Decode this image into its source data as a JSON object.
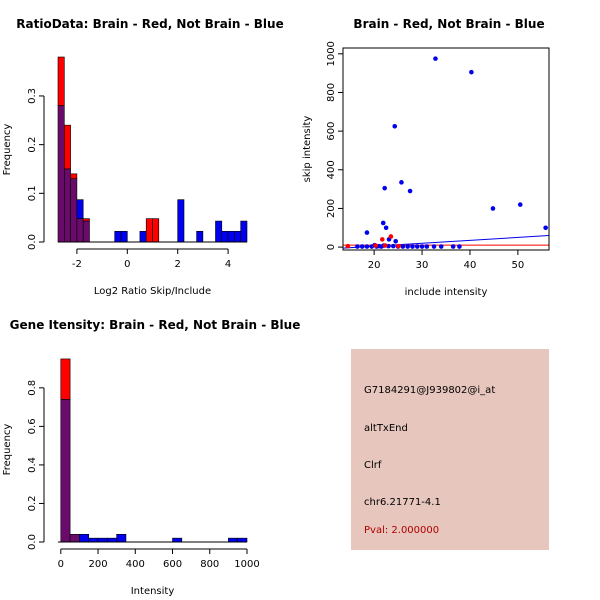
{
  "colors": {
    "red": "#ff0000",
    "blue": "#0000ee",
    "overlap": "#6a0a6a",
    "panel_bg": "#e6c6bd",
    "pval": "#b00000"
  },
  "chart_data": [
    {
      "type": "bar",
      "subtype": "overlaid-histogram",
      "title": "RatioData: Brain - Red, Not Brain - Blue",
      "xlabel": "Log2 Ratio Skip/Include",
      "ylabel": "Frequency",
      "xlim": [
        -2.75,
        4.75
      ],
      "ylim": [
        0,
        0.38
      ],
      "xticks": [
        "-2",
        "0",
        "2",
        "4"
      ],
      "xtick_values": [
        -2,
        0,
        2,
        4
      ],
      "yticks": [
        "0.0",
        "0.1",
        "0.2",
        "0.3"
      ],
      "ytick_values": [
        0,
        0.1,
        0.2,
        0.3
      ],
      "bin_width": 0.25,
      "series": [
        {
          "name": "Brain",
          "color": "red",
          "x0": -2.75,
          "values": [
            0.38,
            0.24,
            0.14,
            0.048,
            0.048,
            0,
            0,
            0,
            0,
            0,
            0,
            0,
            0,
            0,
            0.048,
            0.048
          ]
        },
        {
          "name": "Not Brain",
          "color": "blue",
          "x0": -2.75,
          "values": [
            0.28,
            0.15,
            0.13,
            0.087,
            0.043,
            0,
            0,
            0,
            0,
            0.022,
            0.022,
            0,
            0,
            0.022,
            0,
            0,
            0,
            0,
            0,
            0.087,
            0,
            0,
            0.022,
            0,
            0,
            0.043,
            0.022,
            0.022,
            0.022,
            0.043
          ]
        }
      ]
    },
    {
      "type": "scatter",
      "title": "Brain - Red, Not Brain - Blue",
      "xlabel": "include intensity",
      "ylabel": "skip intensity",
      "xlim": [
        13.5,
        56.5
      ],
      "ylim": [
        -15,
        1030
      ],
      "xticks": [
        "20",
        "30",
        "40",
        "50"
      ],
      "xtick_values": [
        20,
        30,
        40,
        50
      ],
      "yticks": [
        "0",
        "200",
        "400",
        "600",
        "800",
        "1000"
      ],
      "ytick_values": [
        0,
        200,
        400,
        600,
        800,
        1000
      ],
      "series": [
        {
          "name": "Not Brain",
          "color": "blue",
          "points": [
            [
              32.8,
              975
            ],
            [
              40.3,
              905
            ],
            [
              24.3,
              625
            ],
            [
              25.7,
              335
            ],
            [
              22.2,
              305
            ],
            [
              27.5,
              290
            ],
            [
              50.5,
              220
            ],
            [
              44.8,
              200
            ],
            [
              55.8,
              100
            ],
            [
              21.9,
              125
            ],
            [
              22.5,
              100
            ],
            [
              18.5,
              75
            ],
            [
              23.1,
              40
            ],
            [
              24.5,
              30
            ],
            [
              20.1,
              10
            ],
            [
              21.0,
              5
            ],
            [
              22.0,
              8
            ],
            [
              23.0,
              5
            ],
            [
              24.0,
              5
            ],
            [
              25.0,
              3
            ],
            [
              26.0,
              3
            ],
            [
              27.0,
              3
            ],
            [
              28.0,
              3
            ],
            [
              29.0,
              3
            ],
            [
              30.0,
              3
            ],
            [
              31.0,
              3
            ],
            [
              32.5,
              3
            ],
            [
              34.0,
              3
            ],
            [
              36.5,
              3
            ],
            [
              37.8,
              3
            ],
            [
              16.5,
              3
            ],
            [
              17.5,
              3
            ],
            [
              18.5,
              3
            ],
            [
              19.5,
              3
            ],
            [
              20.5,
              3
            ],
            [
              21.5,
              3
            ]
          ]
        },
        {
          "name": "Brain",
          "color": "red",
          "points": [
            [
              14.5,
              5
            ],
            [
              21.7,
              40
            ],
            [
              23.5,
              55
            ],
            [
              20.3,
              8
            ],
            [
              22.3,
              8
            ],
            [
              25.1,
              5
            ]
          ]
        }
      ],
      "fit_lines": [
        {
          "color": "blue",
          "x1": 13.5,
          "y1": -5,
          "x2": 56.5,
          "y2": 60
        },
        {
          "color": "red",
          "x1": 13.5,
          "y1": 10,
          "x2": 56.5,
          "y2": 10
        }
      ]
    },
    {
      "type": "bar",
      "subtype": "overlaid-histogram",
      "title": "Gene Itensity: Brain - Red, Not Brain - Blue",
      "xlabel": "Intensity",
      "ylabel": "Frequency",
      "xlim": [
        -15,
        1000
      ],
      "ylim": [
        0,
        0.96
      ],
      "xticks": [
        "0",
        "200",
        "400",
        "600",
        "800",
        "1000"
      ],
      "xtick_values": [
        0,
        200,
        400,
        600,
        800,
        1000
      ],
      "yticks": [
        "0.0",
        "0.2",
        "0.4",
        "0.6",
        "0.8"
      ],
      "ytick_values": [
        0,
        0.2,
        0.4,
        0.6,
        0.8
      ],
      "bin_width": 50,
      "series": [
        {
          "name": "Brain",
          "color": "red",
          "x0": 0,
          "values": [
            0.95,
            0.04
          ]
        },
        {
          "name": "Not Brain",
          "color": "blue",
          "x0": 0,
          "values": [
            0.74,
            0.04,
            0.04,
            0.02,
            0.02,
            0.02,
            0.04,
            0,
            0,
            0,
            0,
            0,
            0.02,
            0,
            0,
            0,
            0,
            0,
            0.02,
            0.02
          ]
        }
      ]
    }
  ],
  "info": {
    "probe": "G7184291@J939802@i_at",
    "event": "altTxEnd",
    "gene": "Clrf",
    "location": "chr6.21771-4.1",
    "pval": "Pval: 2.000000"
  }
}
